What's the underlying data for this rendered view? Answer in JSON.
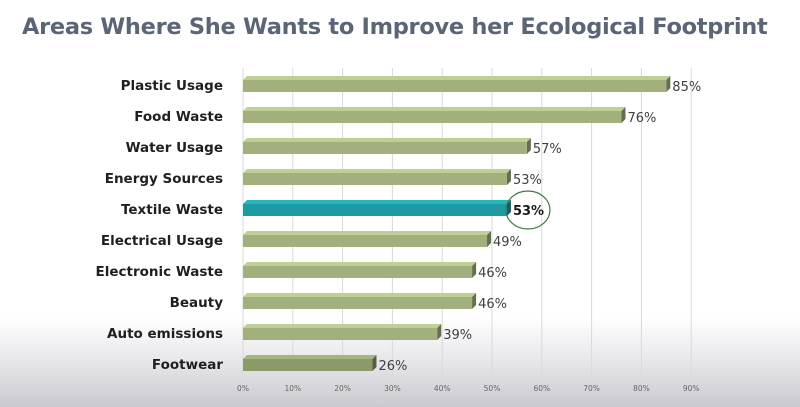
{
  "chart_data": {
    "type": "bar",
    "orientation": "horizontal",
    "title": "Areas Where She Wants  to Improve her Ecological Footprint",
    "categories": [
      "Plastic Usage",
      "Food Waste",
      "Water Usage",
      "Energy Sources",
      "Textile Waste",
      "Electrical Usage",
      "Electronic Waste",
      "Beauty",
      "Auto emissions",
      "Footwear"
    ],
    "values": [
      85,
      76,
      57,
      53,
      53,
      49,
      46,
      46,
      39,
      26
    ],
    "value_labels": [
      "85%",
      "76%",
      "57%",
      "53%",
      "53%",
      "49%",
      "46%",
      "46%",
      "39%",
      "26%"
    ],
    "x_ticks": [
      "0%",
      "10%",
      "20%",
      "30%",
      "40%",
      "50%",
      "60%",
      "70%",
      "80%",
      "90%"
    ],
    "xlim": [
      0,
      90
    ],
    "grid": true,
    "highlighted_category": "Textile Waste",
    "colors": {
      "bar": "#a2b07e",
      "bar_highlight": "#1f9aa2",
      "bar_last": "#8a9a6a",
      "circle": "#3e7a3e",
      "title": "#5a6577"
    }
  }
}
